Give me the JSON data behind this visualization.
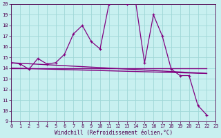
{
  "xlabel": "Windchill (Refroidissement éolien,°C)",
  "bg_color": "#c8f0f0",
  "grid_color": "#a0d8d8",
  "line_color": "#800080",
  "x_values": [
    0,
    1,
    2,
    3,
    4,
    5,
    6,
    7,
    8,
    9,
    10,
    11,
    12,
    13,
    14,
    15,
    16,
    17,
    18,
    19,
    20,
    21,
    22
  ],
  "curve1": [
    14.5,
    14.4,
    13.9,
    14.9,
    14.4,
    14.5,
    15.3,
    17.2,
    18.0,
    16.5,
    15.8,
    20.0,
    20.2,
    20.0,
    20.2,
    14.5,
    19.0,
    17.0,
    13.9,
    13.3,
    13.3,
    10.5,
    9.6
  ],
  "line1_x": [
    0,
    22
  ],
  "line1_y": [
    14.5,
    13.5
  ],
  "line2_x": [
    0,
    22
  ],
  "line2_y": [
    14.0,
    13.5
  ],
  "line3_x": [
    0,
    22
  ],
  "line3_y": [
    14.0,
    14.0
  ],
  "xmin": 0,
  "xmax": 23,
  "ymin": 9,
  "ymax": 20,
  "yticks": [
    9,
    10,
    11,
    12,
    13,
    14,
    15,
    16,
    17,
    18,
    19,
    20
  ],
  "xticks": [
    0,
    1,
    2,
    3,
    4,
    5,
    6,
    7,
    8,
    9,
    10,
    11,
    12,
    13,
    14,
    15,
    16,
    17,
    18,
    19,
    20,
    21,
    22,
    23
  ]
}
